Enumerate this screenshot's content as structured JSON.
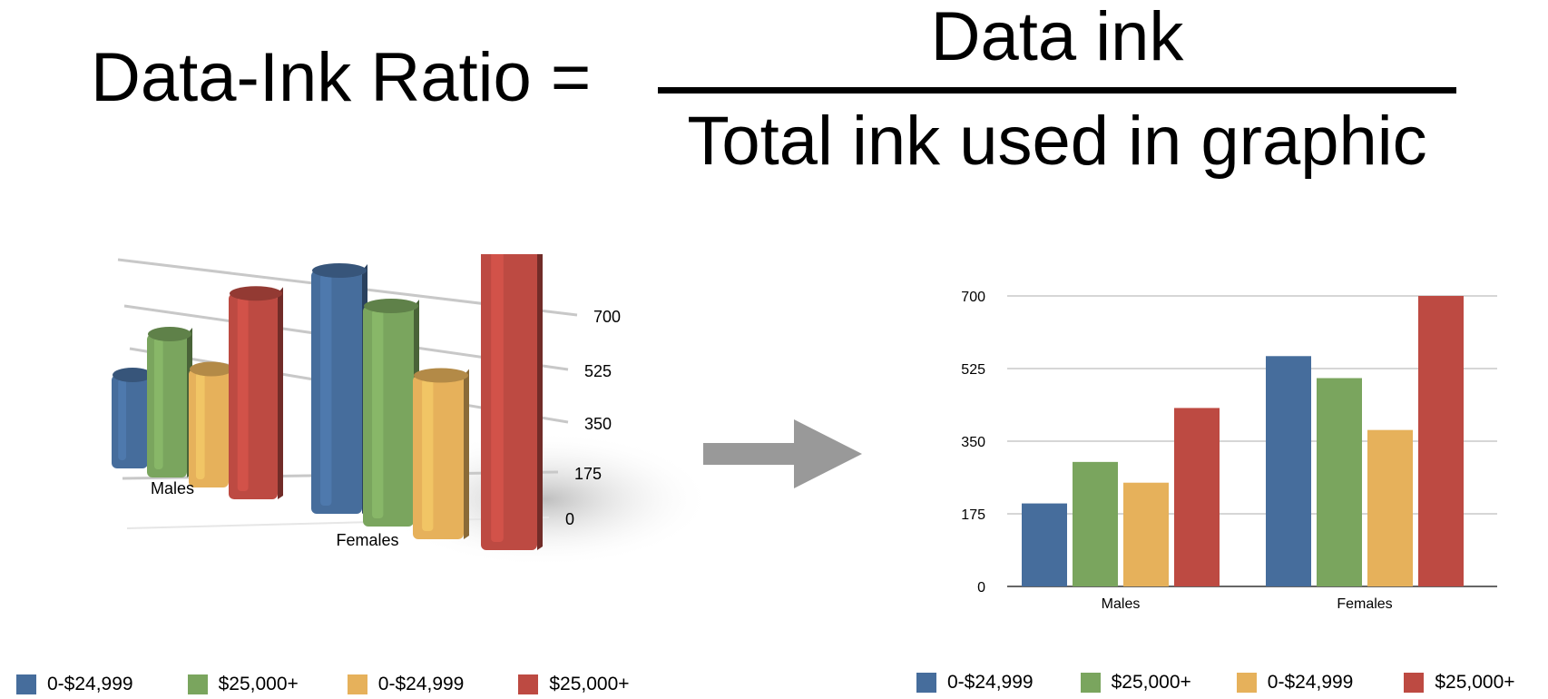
{
  "formula": {
    "lhs": "Data-Ink Ratio =",
    "numerator": "Data ink",
    "denominator": "Total ink used in graphic"
  },
  "colors": {
    "blue": "#466d9c",
    "green": "#7aa55e",
    "orange": "#e6b15b",
    "red": "#bd4a42",
    "grid": "#c8c8c8",
    "arrow": "#999999"
  },
  "legend": [
    {
      "label": "0-$24,999",
      "color": "#466d9c"
    },
    {
      "label": "$25,000+",
      "color": "#7aa55e"
    },
    {
      "label": "0-$24,999",
      "color": "#e6b15b"
    },
    {
      "label": "$25,000+",
      "color": "#bd4a42"
    }
  ],
  "chart_data": [
    {
      "type": "bar",
      "style": "3d",
      "categories": [
        "Males",
        "Females"
      ],
      "series": [
        {
          "name": "0-$24,999",
          "values": [
            200,
            550
          ]
        },
        {
          "name": "$25,000+",
          "values": [
            300,
            500
          ]
        },
        {
          "name": "0-$24,999",
          "values": [
            250,
            375
          ]
        },
        {
          "name": "$25,000+",
          "values": [
            425,
            700
          ]
        }
      ],
      "y_ticks": [
        "0",
        "175",
        "350",
        "525",
        "700"
      ],
      "ylim": [
        0,
        700
      ],
      "grid": true,
      "legend_position": "bottom"
    },
    {
      "type": "bar",
      "style": "2d",
      "categories": [
        "Males",
        "Females"
      ],
      "series": [
        {
          "name": "0-$24,999",
          "values": [
            200,
            555
          ]
        },
        {
          "name": "$25,000+",
          "values": [
            300,
            502
          ]
        },
        {
          "name": "0-$24,999",
          "values": [
            250,
            377
          ]
        },
        {
          "name": "$25,000+",
          "values": [
            430,
            700
          ]
        }
      ],
      "y_ticks": [
        "0",
        "175",
        "350",
        "525",
        "700"
      ],
      "ylim": [
        0,
        700
      ],
      "grid": true,
      "legend_position": "bottom"
    }
  ]
}
